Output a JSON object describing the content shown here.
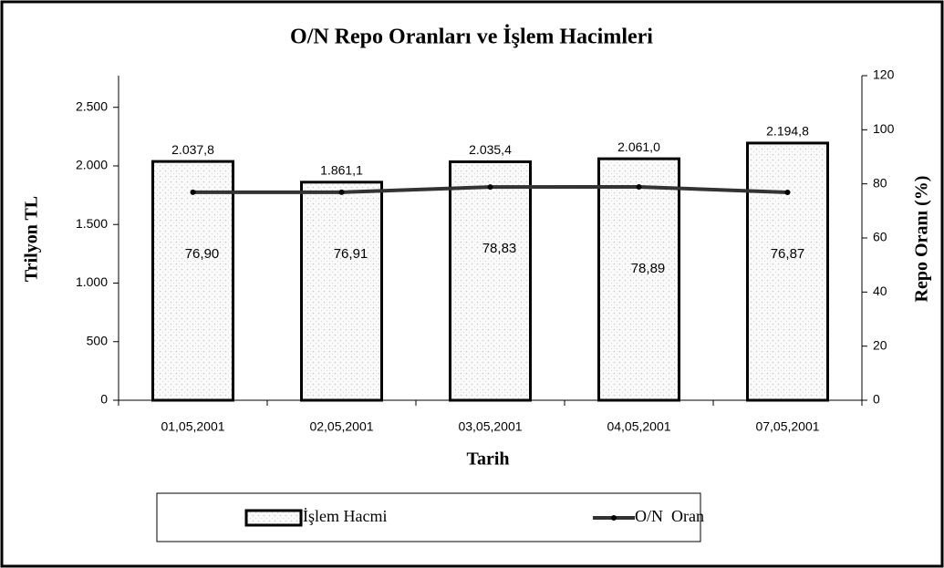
{
  "chart_data": {
    "type": "bar",
    "title": "O/N Repo Oranları ve İşlem Hacimleri",
    "x_label": "Tarih",
    "y_label": "Trilyon TL",
    "y2_label": "Repo Oranı (%)",
    "categories": [
      "01,05,2001",
      "02,05,2001",
      "03,05,2001",
      "04,05,2001",
      "07,05,2001"
    ],
    "series": [
      {
        "name": "İşlem Hacmi",
        "type": "bar",
        "color": "#000000",
        "values": [
          2037.8,
          1861.1,
          2035.4,
          2061.0,
          2194.8
        ],
        "value_labels": [
          "2.037,8",
          "1.861,1",
          "2.035,4",
          "2.061,0",
          "2.194,8"
        ]
      },
      {
        "name": "O/N  Oran",
        "type": "line",
        "axis": "y2",
        "color": "#333333",
        "values": [
          76.9,
          76.91,
          78.83,
          78.89,
          76.87
        ],
        "value_labels": [
          "76,90",
          "76,91",
          "78,83",
          "78,89",
          "76,87"
        ]
      }
    ],
    "ylim": [
      0,
      2770
    ],
    "yticks": [
      0,
      500,
      {
        "value": 1000,
        "label": "1.000"
      },
      {
        "value": 1500,
        "label": "1.500"
      },
      {
        "value": 2000,
        "label": "2.000"
      },
      {
        "value": 2500,
        "label": "2.500"
      }
    ],
    "y2lim": [
      0,
      120
    ],
    "y2ticks": [
      0,
      20,
      40,
      60,
      80,
      100,
      120
    ],
    "legend": "bottom"
  }
}
